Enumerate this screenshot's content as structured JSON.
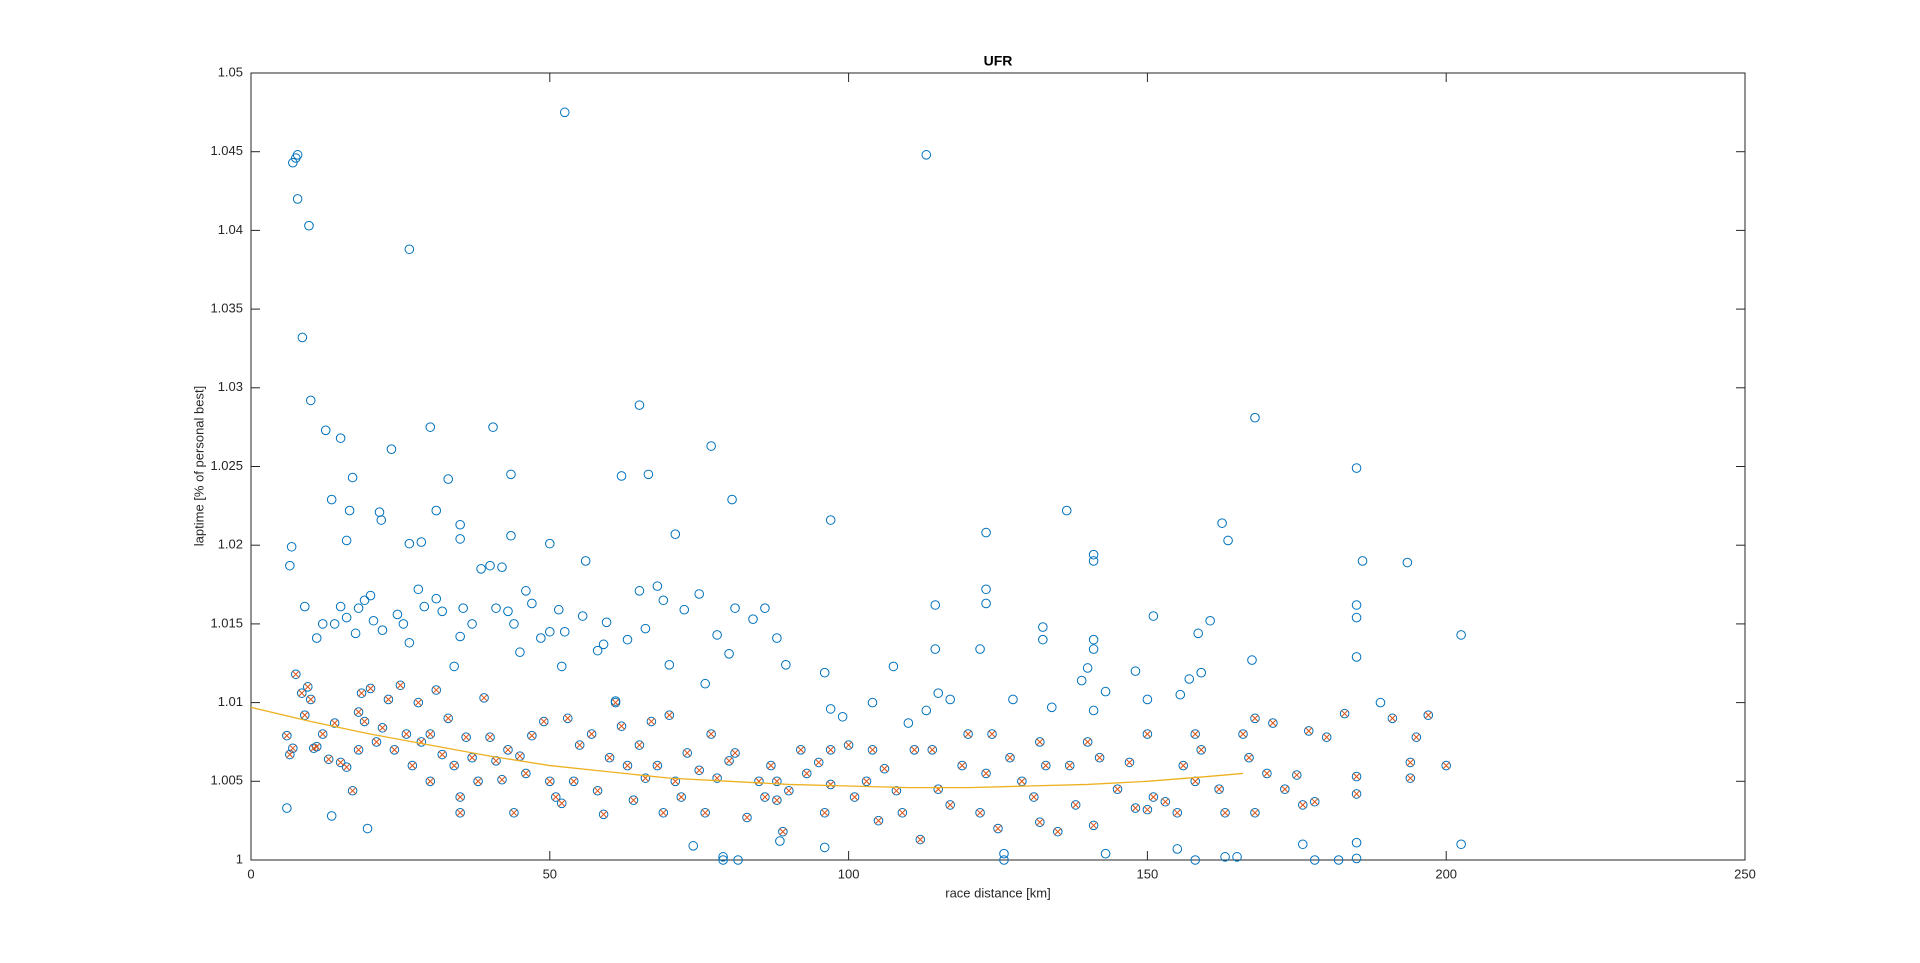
{
  "chart_data": {
    "type": "scatter",
    "title": "UFR",
    "xlabel": "race distance [km]",
    "ylabel": "laptime [% of personal best]",
    "xlim": [
      0,
      250
    ],
    "xticks": [
      0,
      50,
      100,
      150,
      200,
      250
    ],
    "ylim": [
      1,
      1.05
    ],
    "yticks": [
      1,
      1.005,
      1.01,
      1.015,
      1.02,
      1.025,
      1.03,
      1.035,
      1.04,
      1.045,
      1.05
    ],
    "grid": false,
    "series": [
      {
        "marker": "o",
        "color": "#0072bd",
        "x": [
          7,
          7.5,
          7.8,
          7.8,
          9.7,
          8.6,
          26.5,
          52.5,
          113,
          10,
          6.5,
          6.8,
          12.5,
          13.5,
          15,
          16,
          17,
          16.5,
          21.5,
          21.8,
          23.5,
          26.5,
          28.5,
          30,
          31,
          33,
          35,
          35,
          40.5,
          43.5,
          43.5,
          50,
          56,
          65,
          66.5,
          62,
          71,
          77,
          80.5,
          97,
          123,
          136.5,
          141,
          141,
          162.5,
          163.5,
          168,
          185,
          186,
          193.5,
          202.5,
          202.5,
          9,
          12,
          11,
          14,
          15,
          16,
          17.5,
          18,
          19,
          20,
          20.5,
          22,
          24.5,
          25.5,
          26.5,
          28,
          29,
          31,
          32,
          34,
          35.5,
          35,
          37,
          38.5,
          40,
          42,
          41,
          43,
          44,
          46,
          47,
          45,
          48.5,
          50,
          51.5,
          52.5,
          52,
          55.5,
          58,
          59.5,
          59,
          61,
          63,
          65,
          66,
          68,
          69,
          70,
          72.5,
          75,
          76,
          78,
          80,
          81,
          84,
          86,
          88,
          89.5,
          96,
          97,
          99,
          104,
          107.5,
          110,
          113,
          114.5,
          114.5,
          115,
          117,
          122,
          123,
          123,
          127.5,
          132.5,
          132.5,
          134,
          139,
          140,
          141,
          141,
          141,
          143,
          148,
          150,
          151,
          155.5,
          157,
          158.5,
          159,
          160.5,
          167.5,
          185,
          185,
          185,
          189,
          6,
          13.5,
          19.5,
          74,
          79,
          79,
          81.5,
          88.5,
          96,
          126,
          126,
          143,
          155,
          158,
          163,
          165,
          176,
          178,
          182,
          185,
          185,
          6,
          6.5,
          7,
          7.5,
          8.5,
          9,
          9.5,
          10,
          10.5,
          11,
          12,
          13,
          14,
          15,
          16,
          17,
          18,
          18,
          18.5,
          19,
          20,
          21,
          22,
          23,
          24,
          25,
          26,
          27,
          28,
          28.5,
          30,
          30,
          31,
          32,
          33,
          34,
          35,
          35,
          36,
          37,
          38,
          39,
          40,
          41,
          42,
          43,
          44,
          45,
          46,
          47,
          49,
          50,
          51,
          52,
          53,
          54,
          55,
          57,
          58,
          59,
          60,
          61,
          62,
          63,
          64,
          65,
          66,
          67,
          68,
          69,
          70,
          71,
          72,
          73,
          75,
          76,
          77,
          78,
          80,
          81,
          83,
          85,
          86,
          87,
          88,
          88,
          89,
          90,
          92,
          93,
          95,
          96,
          97,
          97,
          100,
          101,
          103,
          104,
          105,
          106,
          108,
          109,
          111,
          112,
          114,
          115,
          117,
          119,
          120,
          122,
          123,
          124,
          125,
          127,
          129,
          131,
          132,
          132,
          133,
          135,
          137,
          138,
          140,
          141,
          142,
          145,
          147,
          148,
          150,
          150,
          151,
          153,
          155,
          156,
          158,
          158,
          159,
          162,
          163,
          166,
          167,
          168,
          168,
          170,
          171,
          173,
          175,
          176,
          177,
          178,
          180,
          183,
          185,
          185,
          191,
          194,
          194,
          195,
          197,
          200
        ],
        "values": [
          1.0443,
          1.0446,
          1.0448,
          1.042,
          1.0403,
          1.0332,
          1.0388,
          1.0475,
          1.0448,
          1.0292,
          1.0187,
          1.0199,
          1.0273,
          1.0229,
          1.0268,
          1.0203,
          1.0243,
          1.0222,
          1.0221,
          1.0216,
          1.0261,
          1.0201,
          1.0202,
          1.0275,
          1.0222,
          1.0242,
          1.0213,
          1.0204,
          1.0275,
          1.0245,
          1.0206,
          1.0201,
          1.019,
          1.0289,
          1.0245,
          1.0244,
          1.0207,
          1.0263,
          1.0229,
          1.0216,
          1.0208,
          1.0222,
          1.0194,
          1.019,
          1.0214,
          1.0203,
          1.0281,
          1.0249,
          1.019,
          1.0189,
          1.0143,
          1.001,
          1.0161,
          1.015,
          1.0141,
          1.015,
          1.0161,
          1.0154,
          1.0144,
          1.016,
          1.0165,
          1.0168,
          1.0152,
          1.0146,
          1.0156,
          1.015,
          1.0138,
          1.0172,
          1.0161,
          1.0166,
          1.0158,
          1.0123,
          1.016,
          1.0142,
          1.015,
          1.0185,
          1.0187,
          1.0186,
          1.016,
          1.0158,
          1.015,
          1.0171,
          1.0163,
          1.0132,
          1.0141,
          1.0145,
          1.0159,
          1.0145,
          1.0123,
          1.0155,
          1.0133,
          1.0151,
          1.0137,
          1.0101,
          1.014,
          1.0171,
          1.0147,
          1.0174,
          1.0165,
          1.0124,
          1.0159,
          1.0169,
          1.0112,
          1.0143,
          1.0131,
          1.016,
          1.0153,
          1.016,
          1.0141,
          1.0124,
          1.0119,
          1.0096,
          1.0091,
          1.01,
          1.0123,
          1.0087,
          1.0095,
          1.0162,
          1.0134,
          1.0106,
          1.0102,
          1.0134,
          1.0172,
          1.0163,
          1.0102,
          1.0148,
          1.014,
          1.0097,
          1.0114,
          1.0122,
          1.014,
          1.0134,
          1.0095,
          1.0107,
          1.012,
          1.0102,
          1.0155,
          1.0105,
          1.0115,
          1.0144,
          1.0119,
          1.0152,
          1.0127,
          1.0162,
          1.0154,
          1.0129,
          1.01,
          1.0033,
          1.0028,
          1.002,
          1.0009,
          1.0002,
          1,
          1,
          1.0012,
          1.0008,
          1.0004,
          1,
          1.0004,
          1.0007,
          1,
          1.0002,
          1.0002,
          1.001,
          1,
          1,
          1.0001,
          1.0011,
          1.0079,
          1.0067,
          1.0071,
          1.0118,
          1.0106,
          1.0092,
          1.011,
          1.0102,
          1.0071,
          1.0072,
          1.008,
          1.0064,
          1.0087,
          1.0062,
          1.0059,
          1.0044,
          1.0094,
          1.007,
          1.0106,
          1.0088,
          1.0109,
          1.0075,
          1.0084,
          1.0102,
          1.007,
          1.0111,
          1.008,
          1.006,
          1.01,
          1.0075,
          1.008,
          1.005,
          1.0108,
          1.0067,
          1.009,
          1.006,
          1.004,
          1.003,
          1.0078,
          1.0065,
          1.005,
          1.0103,
          1.0078,
          1.0063,
          1.0051,
          1.007,
          1.003,
          1.0066,
          1.0055,
          1.0079,
          1.0088,
          1.005,
          1.004,
          1.0036,
          1.009,
          1.005,
          1.0073,
          1.008,
          1.0044,
          1.0029,
          1.0065,
          1.01,
          1.0085,
          1.006,
          1.0038,
          1.0073,
          1.0052,
          1.0088,
          1.006,
          1.003,
          1.0092,
          1.005,
          1.004,
          1.0068,
          1.0057,
          1.003,
          1.008,
          1.0052,
          1.0063,
          1.0068,
          1.0027,
          1.005,
          1.004,
          1.006,
          1.005,
          1.0038,
          1.0018,
          1.0044,
          1.007,
          1.0055,
          1.0062,
          1.003,
          1.007,
          1.0048,
          1.0073,
          1.004,
          1.005,
          1.007,
          1.0025,
          1.0058,
          1.0044,
          1.003,
          1.007,
          1.0013,
          1.007,
          1.0045,
          1.0035,
          1.006,
          1.008,
          1.003,
          1.0055,
          1.008,
          1.002,
          1.0065,
          1.005,
          1.004,
          1.0075,
          1.0024,
          1.006,
          1.0018,
          1.006,
          1.0035,
          1.0075,
          1.0022,
          1.0065,
          1.0045,
          1.0062,
          1.0033,
          1.008,
          1.0032,
          1.004,
          1.0037,
          1.003,
          1.006,
          1.005,
          1.008,
          1.007,
          1.0045,
          1.003,
          1.008,
          1.0065,
          1.009,
          1.003,
          1.0055,
          1.0087,
          1.0045,
          1.0054,
          1.0035,
          1.0082,
          1.0037,
          1.0078,
          1.0093,
          1.0053,
          1.0042,
          1.009,
          1.0062,
          1.0052,
          1.0078,
          1.0092,
          1.006
        ]
      },
      {
        "marker": "x",
        "color": "#d95319",
        "x": [
          6,
          6.5,
          7,
          7.5,
          8.5,
          9,
          9.5,
          10,
          10.5,
          11,
          12,
          13,
          14,
          15,
          16,
          17,
          18,
          18,
          18.5,
          19,
          20,
          21,
          22,
          23,
          24,
          25,
          26,
          27,
          28,
          28.5,
          30,
          30,
          31,
          32,
          33,
          34,
          35,
          35,
          36,
          37,
          38,
          39,
          40,
          41,
          42,
          43,
          44,
          45,
          46,
          47,
          49,
          50,
          51,
          52,
          53,
          54,
          55,
          57,
          58,
          59,
          60,
          61,
          62,
          63,
          64,
          65,
          66,
          67,
          68,
          69,
          70,
          71,
          72,
          73,
          75,
          76,
          77,
          78,
          80,
          81,
          83,
          85,
          86,
          87,
          88,
          88,
          89,
          90,
          92,
          93,
          95,
          96,
          97,
          97,
          100,
          101,
          103,
          104,
          105,
          106,
          108,
          109,
          111,
          112,
          114,
          115,
          117,
          119,
          120,
          122,
          123,
          124,
          125,
          127,
          129,
          131,
          132,
          132,
          133,
          135,
          137,
          138,
          140,
          141,
          142,
          145,
          147,
          148,
          150,
          150,
          151,
          153,
          155,
          156,
          158,
          158,
          159,
          162,
          163,
          166,
          167,
          168,
          168,
          170,
          171,
          173,
          175,
          176,
          177,
          178,
          180,
          183,
          185,
          185,
          191,
          194,
          194,
          195,
          197,
          200
        ],
        "values": [
          1.0079,
          1.0067,
          1.0071,
          1.0118,
          1.0106,
          1.0092,
          1.011,
          1.0102,
          1.0071,
          1.0072,
          1.008,
          1.0064,
          1.0087,
          1.0062,
          1.0059,
          1.0044,
          1.0094,
          1.007,
          1.0106,
          1.0088,
          1.0109,
          1.0075,
          1.0084,
          1.0102,
          1.007,
          1.0111,
          1.008,
          1.006,
          1.01,
          1.0075,
          1.008,
          1.005,
          1.0108,
          1.0067,
          1.009,
          1.006,
          1.004,
          1.003,
          1.0078,
          1.0065,
          1.005,
          1.0103,
          1.0078,
          1.0063,
          1.0051,
          1.007,
          1.003,
          1.0066,
          1.0055,
          1.0079,
          1.0088,
          1.005,
          1.004,
          1.0036,
          1.009,
          1.005,
          1.0073,
          1.008,
          1.0044,
          1.0029,
          1.0065,
          1.01,
          1.0085,
          1.006,
          1.0038,
          1.0073,
          1.0052,
          1.0088,
          1.006,
          1.003,
          1.0092,
          1.005,
          1.004,
          1.0068,
          1.0057,
          1.003,
          1.008,
          1.0052,
          1.0063,
          1.0068,
          1.0027,
          1.005,
          1.004,
          1.006,
          1.005,
          1.0038,
          1.0018,
          1.0044,
          1.007,
          1.0055,
          1.0062,
          1.003,
          1.007,
          1.0048,
          1.0073,
          1.004,
          1.005,
          1.007,
          1.0025,
          1.0058,
          1.0044,
          1.003,
          1.007,
          1.0013,
          1.007,
          1.0045,
          1.0035,
          1.006,
          1.008,
          1.003,
          1.0055,
          1.008,
          1.002,
          1.0065,
          1.005,
          1.004,
          1.0075,
          1.0024,
          1.006,
          1.0018,
          1.006,
          1.0035,
          1.0075,
          1.0022,
          1.0065,
          1.0045,
          1.0062,
          1.0033,
          1.008,
          1.0032,
          1.004,
          1.0037,
          1.003,
          1.006,
          1.005,
          1.008,
          1.007,
          1.0045,
          1.003,
          1.008,
          1.0065,
          1.009,
          1.003,
          1.0055,
          1.0087,
          1.0045,
          1.0054,
          1.0035,
          1.0082,
          1.0037,
          1.0078,
          1.0093,
          1.0053,
          1.0042,
          1.009,
          1.0062,
          1.0052,
          1.0078,
          1.0092,
          1.006
        ]
      },
      {
        "marker": "line",
        "color": "#edb120",
        "x": [
          0,
          10,
          20,
          30,
          40,
          50,
          60,
          70,
          80,
          90,
          100,
          110,
          120,
          130,
          140,
          150,
          160,
          166
        ],
        "values": [
          1.0097,
          1.0088,
          1.008,
          1.0073,
          1.0066,
          1.006,
          1.0056,
          1.0052,
          1.005,
          1.0048,
          1.0047,
          1.0046,
          1.0046,
          1.0047,
          1.0048,
          1.005,
          1.0053,
          1.0055
        ]
      }
    ]
  }
}
